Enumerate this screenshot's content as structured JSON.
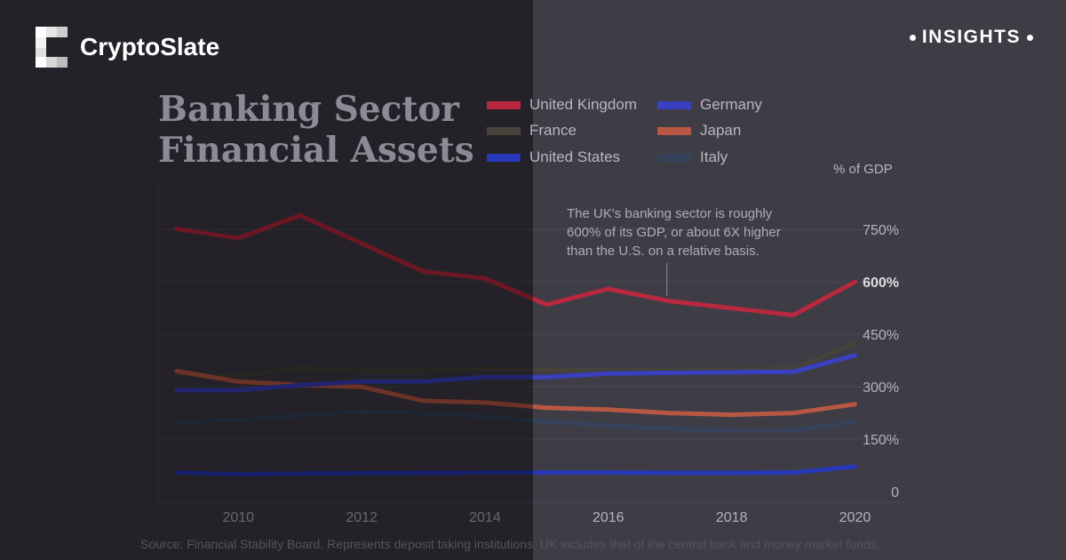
{
  "brand": {
    "name": "CryptoSlate",
    "logo_icon": "cryptoslate-logo-icon"
  },
  "badge": {
    "label": "INSIGHTS"
  },
  "chart_data": {
    "type": "line",
    "title": "Banking Sector Financial Assets",
    "title_lines": [
      "Banking Sector",
      "Financial Assets"
    ],
    "unit_label": "% of GDP",
    "xlabel": "",
    "ylabel": "% of GDP",
    "xlim": [
      2008.7,
      2020.8
    ],
    "ylim": [
      -30,
      880
    ],
    "x_ticks": [
      2010,
      2012,
      2014,
      2016,
      2018,
      2020
    ],
    "x_tick_labels": [
      "2010",
      "2012",
      "2014",
      "2016",
      "2018",
      "2020"
    ],
    "y_ticks": [
      0,
      150,
      300,
      450,
      600,
      750
    ],
    "y_tick_labels": [
      "0",
      "150%",
      "300%",
      "450%",
      "600%",
      "750%"
    ],
    "highlighted_tick": "600%",
    "grid": true,
    "legend_position": "top-right",
    "x": [
      2009,
      2010,
      2011,
      2012,
      2013,
      2014,
      2015,
      2016,
      2017,
      2018,
      2019,
      2020
    ],
    "series": [
      {
        "name": "United Kingdom",
        "color": "#b8283e",
        "values": [
          752,
          725,
          790,
          710,
          630,
          610,
          535,
          580,
          545,
          525,
          505,
          600
        ]
      },
      {
        "name": "France",
        "color": "#45433a",
        "values": [
          335,
          330,
          355,
          345,
          345,
          352,
          348,
          348,
          348,
          350,
          352,
          425
        ]
      },
      {
        "name": "United States",
        "color": "#2838b8",
        "values": [
          55,
          50,
          52,
          53,
          54,
          55,
          55,
          55,
          54,
          54,
          55,
          72
        ]
      },
      {
        "name": "Germany",
        "color": "#3a40c0",
        "values": [
          290,
          290,
          305,
          315,
          315,
          328,
          328,
          338,
          340,
          342,
          343,
          390
        ]
      },
      {
        "name": "Japan",
        "color": "#b85844",
        "values": [
          345,
          315,
          305,
          300,
          260,
          255,
          240,
          235,
          225,
          220,
          225,
          250
        ]
      },
      {
        "name": "Italy",
        "color": "#36425a",
        "values": [
          200,
          205,
          218,
          230,
          225,
          215,
          200,
          190,
          180,
          175,
          175,
          200
        ]
      }
    ],
    "annotation": {
      "text_lines": [
        "The UK's banking sector is roughly",
        "600% of its GDP, or about 6X higher",
        "than the U.S. on a relative basis."
      ],
      "points_to": {
        "x": 2016.95,
        "y": 545
      }
    },
    "source": "Source: Financial Stability Board. Represents deposit taking institutions. UK includes that of the central bank and money market funds."
  }
}
